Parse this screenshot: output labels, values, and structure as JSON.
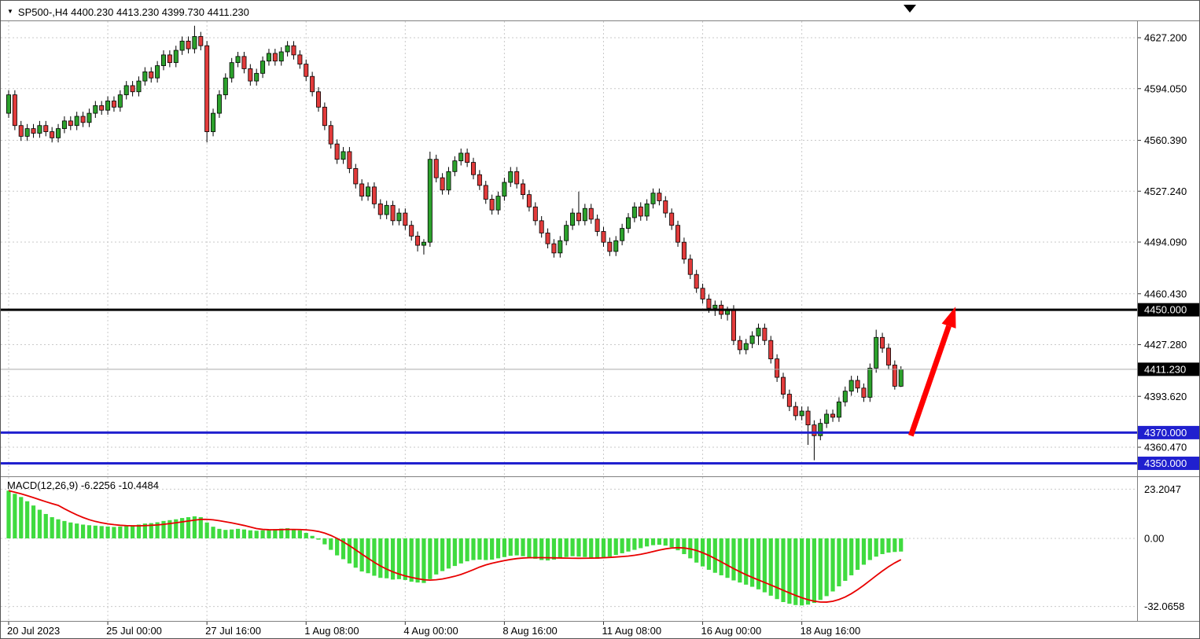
{
  "header": {
    "symbol_info": "SP500-,H4 4400.230 4413.230 4399.730 4411.230",
    "symbol": "SP500-",
    "timeframe": "H4",
    "open": "4400.230",
    "high": "4413.230",
    "low": "4399.730",
    "close": "4411.230"
  },
  "icons": {
    "symbol_marker": "▼",
    "chart_shift": "▼"
  },
  "colors": {
    "background": "#FFFFFF",
    "grid": "#C9C9C9",
    "separator": "#808080",
    "candle_up": "#2CA12C",
    "candle_down": "#E23B3B",
    "candle_outline": "#000000",
    "macd_bar": "#3FDB3F",
    "macd_signal": "#E80000",
    "bid_line": "#AAAAAA",
    "resistance_line": "#000000",
    "support_line": "#2020CF",
    "arrow": "#FF0000",
    "axis_text": "#000000",
    "tag_text": "#FFFFFF"
  },
  "macd_panel": {
    "label": "MACD(12,26,9) -6.2256 -10.4484",
    "name": "MACD",
    "params": "12,26,9",
    "macd_value": "-6.2256",
    "signal_value": "-10.4484"
  },
  "chart_data": {
    "type": "candlestick",
    "title": "SP500-,H4 with MACD(12,26,9)",
    "ylim": [
      4342,
      4638
    ],
    "bars_visible": 145,
    "price_ticks": [
      {
        "value": 4627.2,
        "label": "4627.200"
      },
      {
        "value": 4594.05,
        "label": "4594.050"
      },
      {
        "value": 4560.39,
        "label": "4560.390"
      },
      {
        "value": 4527.24,
        "label": "4527.240"
      },
      {
        "value": 4494.09,
        "label": "4494.090"
      },
      {
        "value": 4460.43,
        "label": "4460.430"
      },
      {
        "value": 4427.28,
        "label": "4427.280"
      },
      {
        "value": 4393.62,
        "label": "4393.620"
      },
      {
        "value": 4360.47,
        "label": "4360.470"
      }
    ],
    "time_labels": [
      {
        "bar": 0,
        "text": "20 Jul 2023"
      },
      {
        "bar": 16,
        "text": "25 Jul 00:00"
      },
      {
        "bar": 32,
        "text": "27 Jul 16:00"
      },
      {
        "bar": 48,
        "text": "1 Aug 08:00"
      },
      {
        "bar": 64,
        "text": "4 Aug 00:00"
      },
      {
        "bar": 80,
        "text": "8 Aug 16:00"
      },
      {
        "bar": 96,
        "text": "11 Aug 08:00"
      },
      {
        "bar": 112,
        "text": "16 Aug 00:00"
      },
      {
        "bar": 128,
        "text": "18 Aug 16:00"
      }
    ],
    "hlines": [
      {
        "value": 4450.0,
        "label": "4450.000",
        "color": "#000000"
      },
      {
        "value": 4370.0,
        "label": "4370.000",
        "color": "#2020CF"
      },
      {
        "value": 4350.0,
        "label": "4350.000",
        "color": "#2020CF"
      }
    ],
    "bid": {
      "value": 4411.23,
      "label": "4411.230"
    },
    "arrow": {
      "from": {
        "bar": 145.6,
        "price": 4368
      },
      "to": {
        "bar": 152.8,
        "price": 4452
      },
      "color": "#FF0000"
    },
    "candles": [
      [
        4578,
        4593,
        4575,
        4590
      ],
      [
        4590,
        4593,
        4567,
        4570
      ],
      [
        4570,
        4573,
        4560,
        4563
      ],
      [
        4563,
        4571,
        4560,
        4568
      ],
      [
        4568,
        4571,
        4562,
        4565
      ],
      [
        4565,
        4573,
        4562,
        4570
      ],
      [
        4570,
        4573,
        4563,
        4566
      ],
      [
        4566,
        4569,
        4559,
        4562
      ],
      [
        4562,
        4571,
        4559,
        4568
      ],
      [
        4568,
        4576,
        4565,
        4573
      ],
      [
        4573,
        4576,
        4567,
        4570
      ],
      [
        4570,
        4579,
        4567,
        4576
      ],
      [
        4576,
        4579,
        4569,
        4572
      ],
      [
        4572,
        4581,
        4569,
        4578
      ],
      [
        4578,
        4586,
        4575,
        4583
      ],
      [
        4583,
        4586,
        4577,
        4580
      ],
      [
        4580,
        4589,
        4577,
        4586
      ],
      [
        4586,
        4589,
        4579,
        4582
      ],
      [
        4582,
        4593,
        4579,
        4590
      ],
      [
        4590,
        4599,
        4587,
        4596
      ],
      [
        4596,
        4599,
        4589,
        4592
      ],
      [
        4592,
        4602,
        4589,
        4599
      ],
      [
        4599,
        4608,
        4596,
        4605
      ],
      [
        4605,
        4608,
        4598,
        4601
      ],
      [
        4601,
        4612,
        4598,
        4609
      ],
      [
        4609,
        4619,
        4606,
        4616
      ],
      [
        4616,
        4619,
        4608,
        4611
      ],
      [
        4611,
        4622,
        4608,
        4619
      ],
      [
        4619,
        4628,
        4616,
        4625
      ],
      [
        4625,
        4628,
        4617,
        4620
      ],
      [
        4620,
        4635,
        4617,
        4628
      ],
      [
        4628,
        4631,
        4619,
        4622
      ],
      [
        4622,
        4625,
        4559,
        4566
      ],
      [
        4566,
        4581,
        4563,
        4578
      ],
      [
        4578,
        4593,
        4575,
        4590
      ],
      [
        4590,
        4604,
        4587,
        4601
      ],
      [
        4601,
        4614,
        4598,
        4611
      ],
      [
        4611,
        4618,
        4608,
        4615
      ],
      [
        4615,
        4618,
        4604,
        4607
      ],
      [
        4607,
        4610,
        4596,
        4599
      ],
      [
        4599,
        4607,
        4596,
        4604
      ],
      [
        4604,
        4615,
        4601,
        4612
      ],
      [
        4612,
        4620,
        4609,
        4617
      ],
      [
        4617,
        4620,
        4609,
        4612
      ],
      [
        4612,
        4621,
        4609,
        4618
      ],
      [
        4618,
        4625,
        4615,
        4622
      ],
      [
        4622,
        4625,
        4613,
        4616
      ],
      [
        4616,
        4619,
        4607,
        4610
      ],
      [
        4610,
        4613,
        4599,
        4602
      ],
      [
        4602,
        4605,
        4589,
        4592
      ],
      [
        4592,
        4595,
        4579,
        4582
      ],
      [
        4582,
        4585,
        4567,
        4570
      ],
      [
        4570,
        4573,
        4555,
        4558
      ],
      [
        4558,
        4561,
        4545,
        4548
      ],
      [
        4548,
        4556,
        4545,
        4553
      ],
      [
        4553,
        4556,
        4539,
        4542
      ],
      [
        4542,
        4545,
        4529,
        4532
      ],
      [
        4532,
        4535,
        4521,
        4524
      ],
      [
        4524,
        4533,
        4521,
        4530
      ],
      [
        4530,
        4533,
        4516,
        4519
      ],
      [
        4519,
        4522,
        4509,
        4512
      ],
      [
        4512,
        4521,
        4509,
        4518
      ],
      [
        4518,
        4521,
        4505,
        4508
      ],
      [
        4508,
        4516,
        4505,
        4513
      ],
      [
        4513,
        4516,
        4502,
        4505
      ],
      [
        4505,
        4508,
        4495,
        4498
      ],
      [
        4498,
        4501,
        4488,
        4492
      ],
      [
        4492,
        4496,
        4486,
        4494
      ],
      [
        4494,
        4553,
        4491,
        4548
      ],
      [
        4548,
        4551,
        4533,
        4536
      ],
      [
        4536,
        4539,
        4525,
        4528
      ],
      [
        4528,
        4543,
        4525,
        4540
      ],
      [
        4540,
        4550,
        4537,
        4547
      ],
      [
        4547,
        4555,
        4544,
        4552
      ],
      [
        4552,
        4555,
        4543,
        4546
      ],
      [
        4546,
        4549,
        4535,
        4538
      ],
      [
        4538,
        4541,
        4528,
        4531
      ],
      [
        4531,
        4534,
        4519,
        4522
      ],
      [
        4522,
        4525,
        4512,
        4515
      ],
      [
        4515,
        4527,
        4512,
        4524
      ],
      [
        4524,
        4536,
        4521,
        4533
      ],
      [
        4533,
        4543,
        4530,
        4540
      ],
      [
        4540,
        4543,
        4529,
        4532
      ],
      [
        4532,
        4535,
        4522,
        4525
      ],
      [
        4525,
        4528,
        4514,
        4517
      ],
      [
        4517,
        4520,
        4505,
        4508
      ],
      [
        4508,
        4511,
        4497,
        4500
      ],
      [
        4500,
        4503,
        4490,
        4493
      ],
      [
        4493,
        4496,
        4484,
        4487
      ],
      [
        4487,
        4498,
        4484,
        4495
      ],
      [
        4495,
        4508,
        4492,
        4505
      ],
      [
        4505,
        4516,
        4502,
        4513
      ],
      [
        4513,
        4527,
        4505,
        4508
      ],
      [
        4508,
        4519,
        4505,
        4516
      ],
      [
        4516,
        4519,
        4506,
        4509
      ],
      [
        4509,
        4512,
        4498,
        4501
      ],
      [
        4501,
        4504,
        4491,
        4494
      ],
      [
        4494,
        4497,
        4485,
        4488
      ],
      [
        4488,
        4498,
        4485,
        4495
      ],
      [
        4495,
        4506,
        4492,
        4503
      ],
      [
        4503,
        4513,
        4500,
        4510
      ],
      [
        4510,
        4520,
        4507,
        4517
      ],
      [
        4517,
        4520,
        4508,
        4511
      ],
      [
        4511,
        4522,
        4508,
        4519
      ],
      [
        4519,
        4529,
        4516,
        4526
      ],
      [
        4526,
        4529,
        4518,
        4521
      ],
      [
        4521,
        4524,
        4510,
        4513
      ],
      [
        4513,
        4516,
        4502,
        4505
      ],
      [
        4505,
        4508,
        4491,
        4494
      ],
      [
        4494,
        4497,
        4480,
        4483
      ],
      [
        4483,
        4486,
        4470,
        4473
      ],
      [
        4473,
        4476,
        4461,
        4464
      ],
      [
        4464,
        4467,
        4454,
        4457
      ],
      [
        4457,
        4460,
        4448,
        4451
      ],
      [
        4451,
        4456,
        4446,
        4453
      ],
      [
        4453,
        4456,
        4444,
        4447
      ],
      [
        4447,
        4452,
        4443,
        4450
      ],
      [
        4450,
        4453,
        4427,
        4430
      ],
      [
        4430,
        4433,
        4421,
        4424
      ],
      [
        4424,
        4431,
        4421,
        4428
      ],
      [
        4428,
        4436,
        4425,
        4433
      ],
      [
        4433,
        4441,
        4427,
        4438
      ],
      [
        4438,
        4441,
        4427,
        4430
      ],
      [
        4430,
        4433,
        4415,
        4418
      ],
      [
        4418,
        4421,
        4403,
        4406
      ],
      [
        4406,
        4409,
        4392,
        4395
      ],
      [
        4395,
        4398,
        4384,
        4387
      ],
      [
        4387,
        4390,
        4378,
        4381
      ],
      [
        4381,
        4387,
        4378,
        4384
      ],
      [
        4384,
        4387,
        4362,
        4375
      ],
      [
        4375,
        4378,
        4352,
        4368
      ],
      [
        4368,
        4379,
        4365,
        4376
      ],
      [
        4376,
        4385,
        4373,
        4382
      ],
      [
        4382,
        4385,
        4377,
        4380
      ],
      [
        4380,
        4393,
        4377,
        4390
      ],
      [
        4390,
        4400,
        4387,
        4397
      ],
      [
        4397,
        4407,
        4394,
        4404
      ],
      [
        4404,
        4407,
        4396,
        4399
      ],
      [
        4399,
        4402,
        4390,
        4393
      ],
      [
        4393,
        4415,
        4390,
        4412
      ],
      [
        4412,
        4437,
        4409,
        4432
      ],
      [
        4432,
        4435,
        4422,
        4425
      ],
      [
        4425,
        4428,
        4411,
        4414
      ],
      [
        4414,
        4417,
        4398,
        4400.2
      ],
      [
        4400.2,
        4413.2,
        4399.7,
        4411.2
      ]
    ],
    "macd": {
      "type": "bar+line",
      "ylim": [
        -38,
        29
      ],
      "signal_sma": 9,
      "ticks": [
        {
          "value": 23.2047,
          "label": "23.2047"
        },
        {
          "value": 0,
          "label": "0.00"
        },
        {
          "value": -32.0658,
          "label": "-32.0658"
        }
      ],
      "values": [
        22.5,
        21.0,
        19.5,
        17.5,
        15.5,
        13.5,
        11.5,
        10.0,
        9.0,
        8.2,
        7.5,
        7.0,
        6.5,
        6.2,
        6.0,
        5.8,
        5.6,
        5.4,
        5.6,
        6.0,
        6.2,
        6.5,
        7.0,
        7.2,
        7.6,
        8.2,
        8.6,
        9.0,
        9.6,
        10.0,
        10.4,
        10.0,
        7.5,
        5.5,
        4.5,
        4.0,
        4.2,
        4.5,
        4.2,
        3.8,
        3.6,
        3.8,
        4.2,
        4.4,
        4.6,
        4.8,
        4.4,
        3.8,
        2.6,
        1.2,
        -0.6,
        -2.8,
        -5.4,
        -8.0,
        -9.8,
        -11.8,
        -13.8,
        -15.6,
        -16.4,
        -17.6,
        -18.6,
        -18.8,
        -19.4,
        -19.2,
        -19.6,
        -20.4,
        -20.8,
        -21.0,
        -19.2,
        -17.0,
        -15.4,
        -14.2,
        -13.0,
        -11.8,
        -10.8,
        -10.2,
        -10.0,
        -10.2,
        -10.0,
        -9.4,
        -8.8,
        -8.2,
        -8.0,
        -8.4,
        -9.0,
        -9.6,
        -10.2,
        -10.4,
        -10.0,
        -9.4,
        -8.8,
        -8.4,
        -8.6,
        -8.8,
        -9.2,
        -9.6,
        -9.2,
        -8.6,
        -7.8,
        -7.0,
        -6.2,
        -5.4,
        -4.6,
        -3.8,
        -3.2,
        -3.0,
        -3.4,
        -4.2,
        -5.6,
        -7.4,
        -9.4,
        -11.4,
        -13.2,
        -14.8,
        -16.2,
        -17.4,
        -18.6,
        -19.8,
        -20.8,
        -21.8,
        -22.8,
        -24.0,
        -25.4,
        -27.0,
        -28.6,
        -30.0,
        -30.8,
        -31.4,
        -31.6,
        -31.2,
        -30.4,
        -29.0,
        -27.2,
        -25.0,
        -22.6,
        -20.0,
        -17.4,
        -14.8,
        -12.4,
        -10.2,
        -8.6,
        -7.4,
        -6.7,
        -6.4,
        -6.2
      ]
    }
  }
}
